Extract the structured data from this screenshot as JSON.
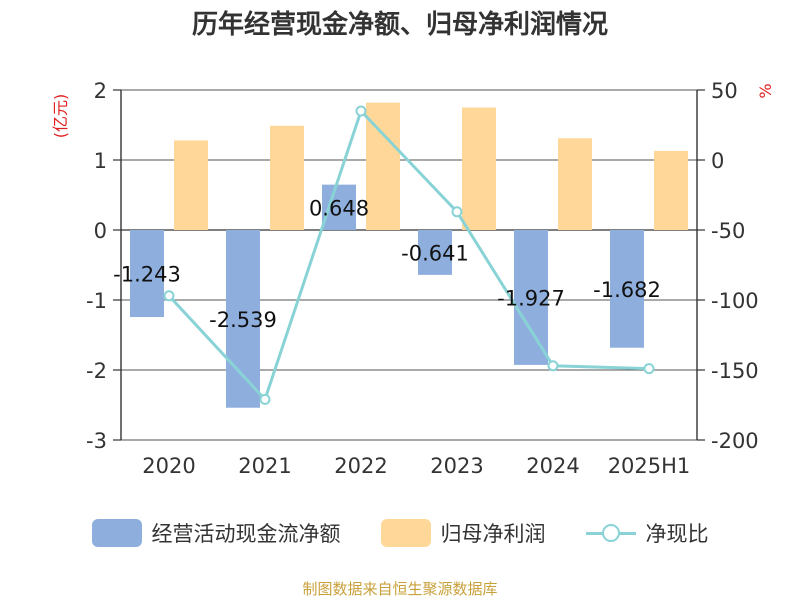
{
  "colors": {
    "bar_cashflow": "#8eaedd",
    "bar_profit": "#ffd899",
    "line_ratio": "#89d3d6",
    "axis": "#333333",
    "grid": "#555555",
    "title": "#333333",
    "axis_label_left": "#e02020",
    "axis_label_right": "#e02020",
    "source": "#c9a13b"
  },
  "chart_data": {
    "type": "bar",
    "title": "历年经营现金净额、归母净利润情况",
    "ylabel_left": "(亿元)",
    "ylabel_right": "%",
    "categories": [
      "2020",
      "2021",
      "2022",
      "2023",
      "2024",
      "2025H1"
    ],
    "ylim_left": [
      -3,
      2
    ],
    "yticks_left": [
      2,
      1,
      0,
      -1,
      -2,
      -3
    ],
    "ylim_right": [
      -200,
      50
    ],
    "yticks_right": [
      50,
      0,
      -50,
      -100,
      -150,
      -200
    ],
    "grid": true,
    "legend_position": "bottom",
    "series": [
      {
        "name": "经营活动现金流净额",
        "type": "bar",
        "axis": "left",
        "values": [
          -1.243,
          -2.539,
          0.648,
          -0.641,
          -1.927,
          -1.682
        ],
        "labels": [
          "-1.243",
          "-2.539",
          "0.648",
          "-0.641",
          "-1.927",
          "-1.682"
        ]
      },
      {
        "name": "归母净利润",
        "type": "bar",
        "axis": "left",
        "values": [
          1.28,
          1.49,
          1.82,
          1.75,
          1.31,
          1.13
        ]
      },
      {
        "name": "净现比",
        "type": "line",
        "axis": "right",
        "values": [
          -97,
          -171,
          35,
          -37,
          -147,
          -149
        ]
      }
    ]
  },
  "legend": {
    "cashflow": "经营活动现金流净额",
    "profit": "归母净利润",
    "ratio": "净现比"
  },
  "source": "制图数据来自恒生聚源数据库"
}
